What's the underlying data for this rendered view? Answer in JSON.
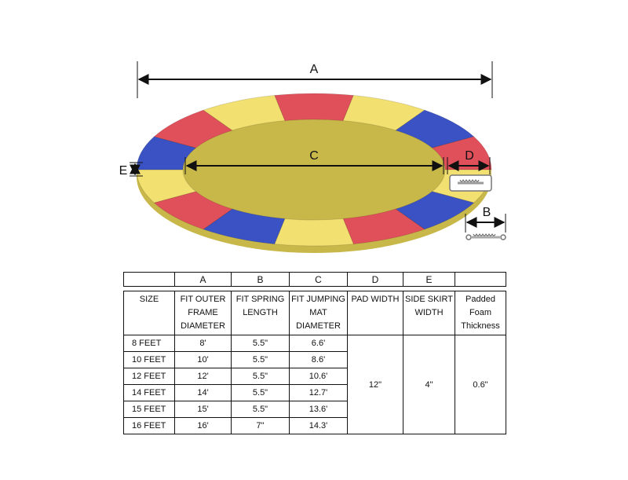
{
  "diagram": {
    "labels": {
      "A": "A",
      "B": "B",
      "C": "C",
      "D": "D",
      "E": "E"
    },
    "colors": {
      "red": "#e0505a",
      "yellow": "#f2e070",
      "blue": "#3a52c4"
    }
  },
  "table": {
    "letters": [
      "",
      "A",
      "B",
      "C",
      "D",
      "E",
      ""
    ],
    "headers": {
      "size": "SIZE",
      "outer": "FIT OUTER FRAME DIAMETER",
      "spring": "FIT SPRING LENGTH",
      "mat": "FIT JUMPING MAT DIAMETER",
      "pad": "PAD WIDTH",
      "skirt": "SIDE SKIRT WIDTH",
      "foam": "Padded Foam Thickness"
    },
    "rows": [
      {
        "size": "8 FEET",
        "outer": "8'",
        "spring": "5.5\"",
        "mat": "6.6'"
      },
      {
        "size": "10 FEET",
        "outer": "10'",
        "spring": "5.5\"",
        "mat": "8.6'"
      },
      {
        "size": "12 FEET",
        "outer": "12'",
        "spring": "5.5\"",
        "mat": "10.6'"
      },
      {
        "size": "14 FEET",
        "outer": "14'",
        "spring": "5.5\"",
        "mat": "12.7'"
      },
      {
        "size": "15 FEET",
        "outer": "15'",
        "spring": "5.5\"",
        "mat": "13.6'"
      },
      {
        "size": "16 FEET",
        "outer": "16'",
        "spring": "7\"",
        "mat": "14.3'"
      }
    ],
    "shared": {
      "pad": "12\"",
      "skirt": "4\"",
      "foam": "0.6\""
    }
  }
}
